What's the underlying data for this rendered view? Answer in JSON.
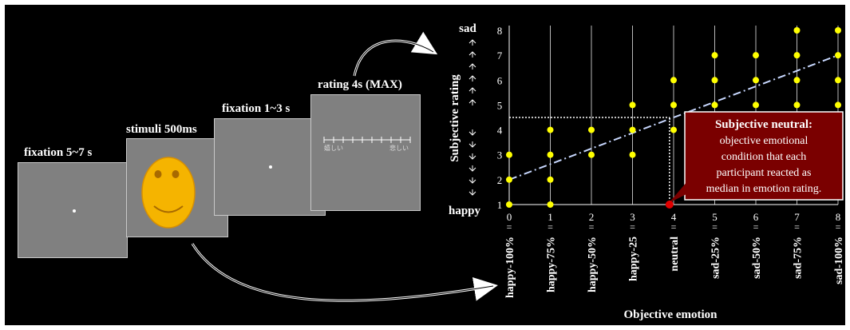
{
  "timeline": {
    "fixation1_label": "fixation 5~7 s",
    "stimuli_label": "stimuli 500ms",
    "fixation2_label": "fixation 1~3 s",
    "rating_label": "rating 4s (MAX)",
    "scale_left": "嬉しい",
    "scale_right": "悲しい",
    "face_color": "#f5b400"
  },
  "chart_data": {
    "type": "scatter",
    "xlabel": "Objective emotion",
    "ylabel": "Subjective rating",
    "x_ticks": [
      "0",
      "1",
      "2",
      "3",
      "4",
      "5",
      "6",
      "7",
      "8"
    ],
    "y_ticks": [
      "1",
      "2",
      "3",
      "4",
      "5",
      "6",
      "7",
      "8"
    ],
    "xlim": [
      0,
      8
    ],
    "ylim": [
      1,
      8
    ],
    "condition_labels": [
      "happy-100%",
      "happy-75%",
      "happy-50%",
      "happy-25",
      "neutral",
      "sad-25%",
      "sad-50%",
      "sad-75%",
      "sad-100%"
    ],
    "condition_marks": "=",
    "y_top_label": "sad",
    "y_bottom_label": "happy",
    "points": [
      {
        "x": 0,
        "y": 1
      },
      {
        "x": 0,
        "y": 2
      },
      {
        "x": 0,
        "y": 3
      },
      {
        "x": 1,
        "y": 1
      },
      {
        "x": 1,
        "y": 2
      },
      {
        "x": 1,
        "y": 3
      },
      {
        "x": 1,
        "y": 4
      },
      {
        "x": 2,
        "y": 3
      },
      {
        "x": 2,
        "y": 4
      },
      {
        "x": 3,
        "y": 3
      },
      {
        "x": 3,
        "y": 4
      },
      {
        "x": 3,
        "y": 5
      },
      {
        "x": 4,
        "y": 4
      },
      {
        "x": 4,
        "y": 5
      },
      {
        "x": 4,
        "y": 6
      },
      {
        "x": 5,
        "y": 4
      },
      {
        "x": 5,
        "y": 5
      },
      {
        "x": 5,
        "y": 6
      },
      {
        "x": 5,
        "y": 7
      },
      {
        "x": 6,
        "y": 4
      },
      {
        "x": 6,
        "y": 5
      },
      {
        "x": 6,
        "y": 6
      },
      {
        "x": 6,
        "y": 7
      },
      {
        "x": 7,
        "y": 5
      },
      {
        "x": 7,
        "y": 6
      },
      {
        "x": 7,
        "y": 7
      },
      {
        "x": 7,
        "y": 8
      },
      {
        "x": 8,
        "y": 5
      },
      {
        "x": 8,
        "y": 6
      },
      {
        "x": 8,
        "y": 7
      },
      {
        "x": 8,
        "y": 8
      }
    ],
    "point_color": "#ffff00",
    "highlight_point": {
      "x": 3.9,
      "y": 1,
      "color": "#e00000"
    },
    "trend_line": [
      [
        0,
        2
      ],
      [
        8,
        7
      ]
    ],
    "median_rating": 4.5,
    "callout_title": "Subjective neutral:",
    "callout_lines": [
      "objective emotional",
      "condition that each",
      "participant reacted as",
      "median in emotion rating."
    ],
    "callout_color": "#7a0000"
  }
}
